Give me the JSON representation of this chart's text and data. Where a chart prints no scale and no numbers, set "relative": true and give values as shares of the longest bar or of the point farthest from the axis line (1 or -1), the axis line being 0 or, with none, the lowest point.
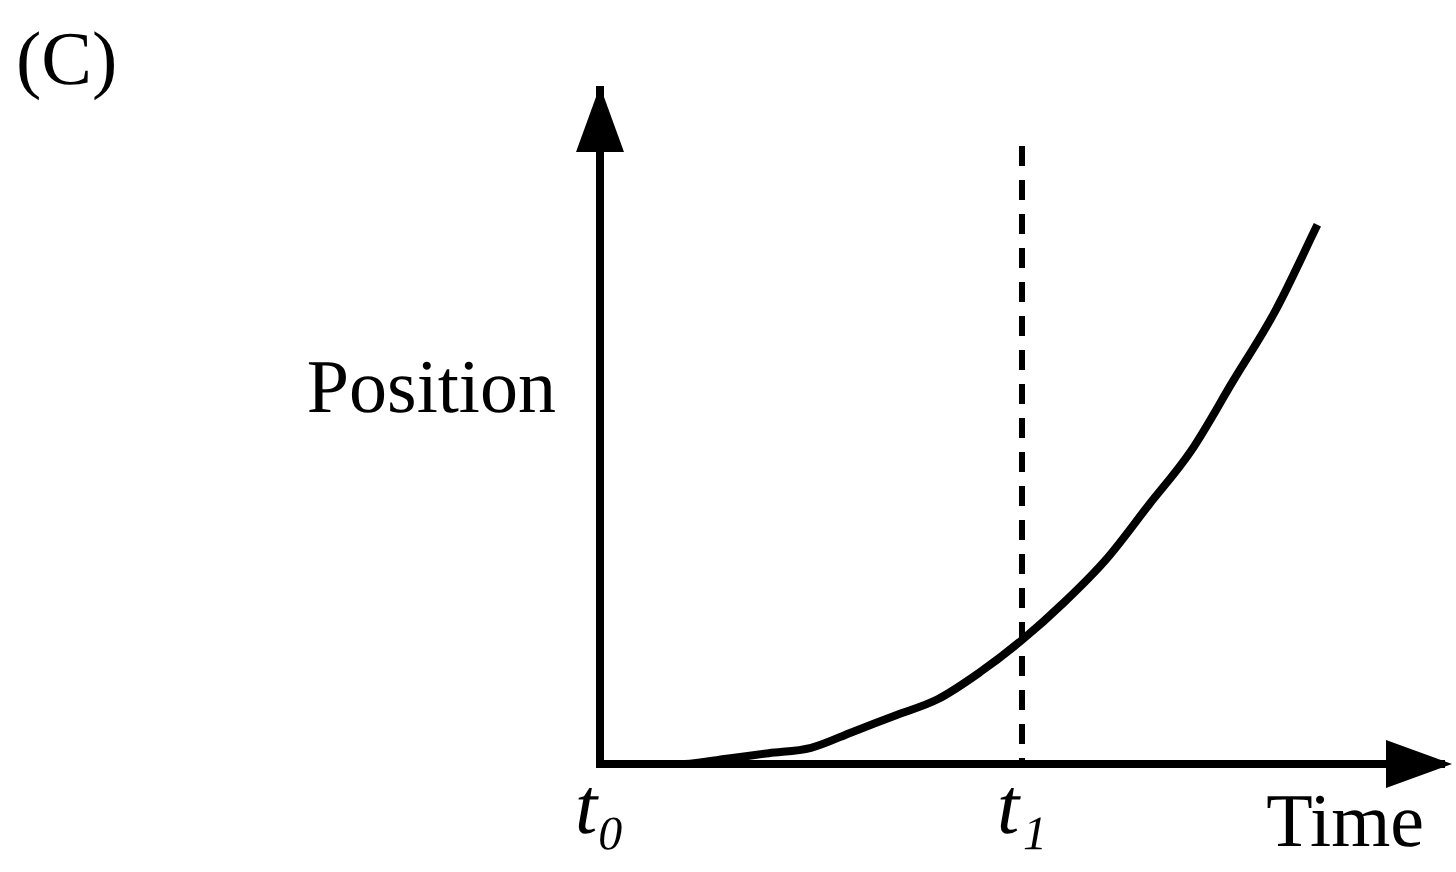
{
  "chart_data": {
    "type": "line",
    "title": "(C)",
    "xlabel": "Time",
    "ylabel": "Position",
    "relative": true,
    "categories": [
      "t₀",
      null,
      null,
      null,
      null,
      null,
      null,
      null,
      null,
      null,
      "t₁",
      null,
      null,
      null,
      null,
      null,
      null,
      null,
      null,
      null,
      null
    ],
    "series": [
      {
        "color": "#000000",
        "values": [
          0,
          0,
          0,
          0.01,
          0.02,
          0.03,
          0.06,
          0.09,
          0.12,
          0.17,
          0.23,
          0.3,
          0.38,
          0.48,
          0.58,
          0.71,
          0.84,
          1,
          null,
          null,
          null
        ]
      }
    ],
    "ref_lines": [
      {
        "axis": "x",
        "value": "t₁",
        "color": "#000000",
        "line_style": "dashed"
      }
    ],
    "grid": false,
    "legend": false,
    "marker": "none",
    "line_style": "solid"
  }
}
